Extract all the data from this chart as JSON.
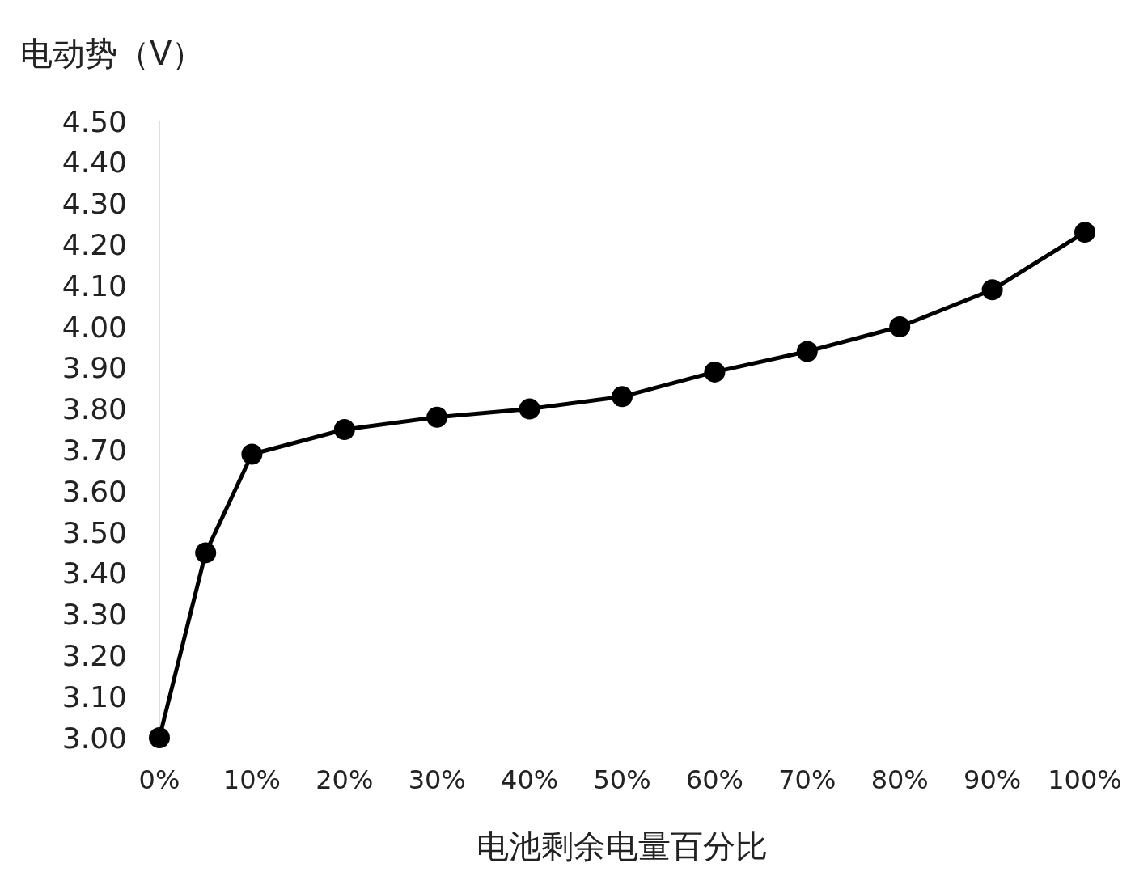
{
  "chart_data": {
    "type": "line",
    "ylabel": "电动势（V）",
    "xlabel": "电池剩余电量百分比",
    "x": [
      0,
      5,
      10,
      20,
      30,
      40,
      50,
      60,
      70,
      80,
      90,
      100
    ],
    "series": [
      {
        "color": "#000000",
        "values": [
          3.0,
          3.45,
          3.69,
          3.75,
          3.78,
          3.8,
          3.83,
          3.89,
          3.94,
          4.0,
          4.09,
          4.23
        ]
      }
    ],
    "marker": "circle",
    "line_style": "solid",
    "xlim": [
      0,
      100
    ],
    "xticks": [
      {
        "value": 0,
        "label": "0%"
      },
      {
        "value": 10,
        "label": "10%"
      },
      {
        "value": 20,
        "label": "20%"
      },
      {
        "value": 30,
        "label": "30%"
      },
      {
        "value": 40,
        "label": "40%"
      },
      {
        "value": 50,
        "label": "50%"
      },
      {
        "value": 60,
        "label": "60%"
      },
      {
        "value": 70,
        "label": "70%"
      },
      {
        "value": 80,
        "label": "80%"
      },
      {
        "value": 90,
        "label": "90%"
      },
      {
        "value": 100,
        "label": "100%"
      }
    ],
    "ylim": [
      3.0,
      4.5
    ],
    "yticks": [
      {
        "value": 3.0,
        "label": "3.00"
      },
      {
        "value": 3.1,
        "label": "3.10"
      },
      {
        "value": 3.2,
        "label": "3.20"
      },
      {
        "value": 3.3,
        "label": "3.30"
      },
      {
        "value": 3.4,
        "label": "3.40"
      },
      {
        "value": 3.5,
        "label": "3.50"
      },
      {
        "value": 3.6,
        "label": "3.60"
      },
      {
        "value": 3.7,
        "label": "3.70"
      },
      {
        "value": 3.8,
        "label": "3.80"
      },
      {
        "value": 3.9,
        "label": "3.90"
      },
      {
        "value": 4.0,
        "label": "4.00"
      },
      {
        "value": 4.1,
        "label": "4.10"
      },
      {
        "value": 4.2,
        "label": "4.20"
      },
      {
        "value": 4.3,
        "label": "4.30"
      },
      {
        "value": 4.4,
        "label": "4.40"
      },
      {
        "value": 4.5,
        "label": "4.50"
      }
    ]
  }
}
